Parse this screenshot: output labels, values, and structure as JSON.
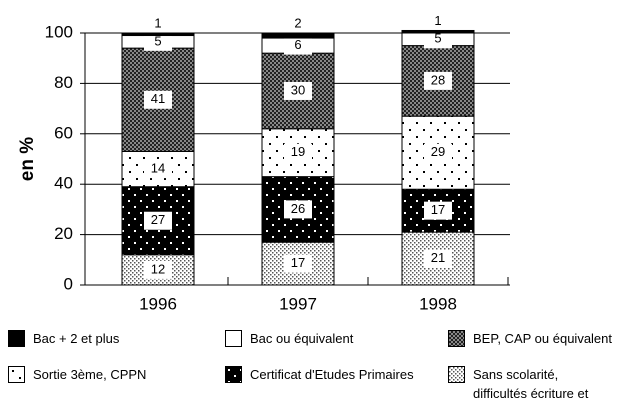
{
  "chart_data": {
    "type": "stacked_bar",
    "y_label": "en %",
    "categories": [
      "1996",
      "1997",
      "1998"
    ],
    "series": [
      {
        "name": "Bac + 2 et plus",
        "color": "#000000",
        "values": [
          1,
          2,
          1
        ]
      },
      {
        "name": "Bac ou équivalent",
        "color": "#ffffff",
        "values": [
          5,
          6,
          5
        ]
      },
      {
        "name": "BEP, CAP ou équivalent",
        "color": "#444444",
        "pattern": "checker",
        "values": [
          41,
          30,
          28
        ]
      },
      {
        "name": "Sortie 3ème, CPPN",
        "color": "#ffffff",
        "pattern": "sparse",
        "values": [
          14,
          19,
          29
        ]
      },
      {
        "name": "Certificat d'Etudes Primaires",
        "color": "#000000",
        "pattern": "blackdots",
        "values": [
          27,
          26,
          17
        ]
      },
      {
        "name": "Sans scolarité,\ndifficultés écriture et lecture",
        "color": "#dddddd",
        "pattern": "dense",
        "values": [
          12,
          17,
          21
        ]
      }
    ],
    "ylim": [
      0,
      100
    ],
    "yticks": [
      0,
      20,
      40,
      60,
      80,
      100
    ],
    "grid": true
  }
}
